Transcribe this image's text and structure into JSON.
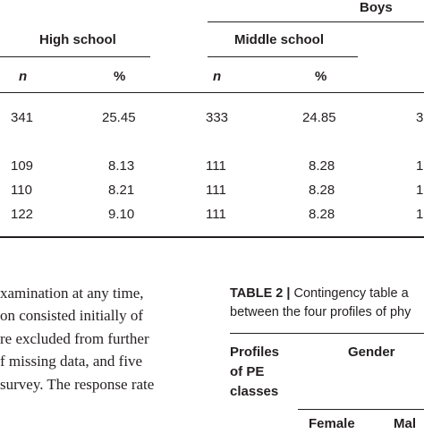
{
  "table1": {
    "group_header": "Boys",
    "col_groups": [
      "High school",
      "Middle school"
    ],
    "subheaders": [
      "n",
      "%",
      "n",
      "%"
    ],
    "rows": [
      {
        "hs_n": "341",
        "hs_pct": "25.45",
        "ms_n": "333",
        "ms_pct": "24.85",
        "cut": "3"
      },
      {
        "hs_n": "109",
        "hs_pct": "8.13",
        "ms_n": "111",
        "ms_pct": "8.28",
        "cut": "1"
      },
      {
        "hs_n": "110",
        "hs_pct": "8.21",
        "ms_n": "111",
        "ms_pct": "8.28",
        "cut": "1"
      },
      {
        "hs_n": "122",
        "hs_pct": "9.10",
        "ms_n": "111",
        "ms_pct": "8.28",
        "cut": "1"
      }
    ]
  },
  "body_lines": [
    "xamination at any time,",
    "on consisted initially of",
    "re excluded from further",
    "f missing data, and five",
    "survey. The response rate"
  ],
  "table2": {
    "label": "TABLE 2 |",
    "caption_line1": "Contingency table a",
    "caption_line2": "between the four profiles of phy",
    "row_header_lines": [
      "Profiles",
      "of PE",
      "classes"
    ],
    "col_header": "Gender",
    "sub_left": "Female",
    "sub_right": "Mal"
  }
}
